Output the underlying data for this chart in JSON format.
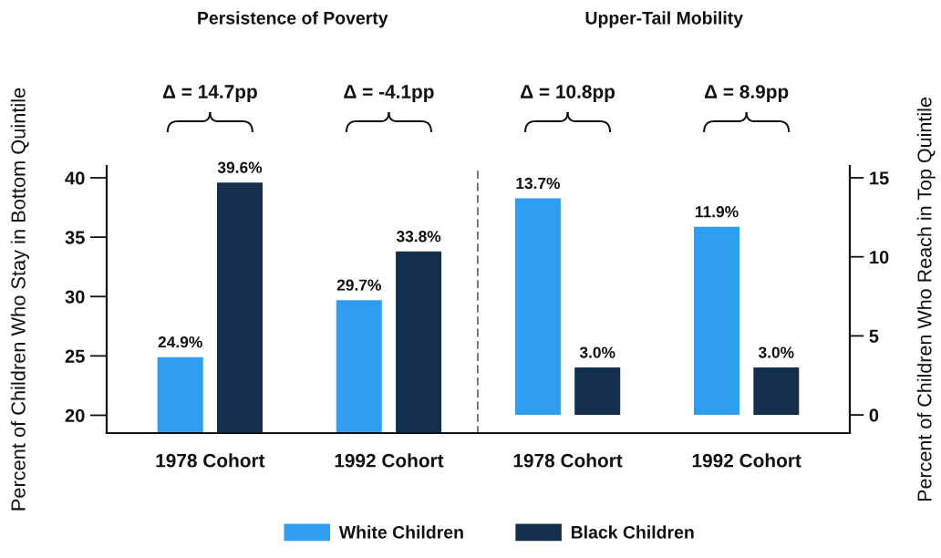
{
  "chart_data": [
    {
      "type": "bar",
      "title": "Persistence of Poverty",
      "ylabel": "Percent of Children Who Stay in Bottom Quintile",
      "categories": [
        "1978 Cohort",
        "1992 Cohort"
      ],
      "series": [
        {
          "name": "White Children",
          "color": "#2f9df1",
          "values": [
            24.9,
            29.7
          ],
          "value_labels": [
            "24.9%",
            "29.7%"
          ]
        },
        {
          "name": "Black Children",
          "color": "#132f4b",
          "values": [
            39.6,
            33.8
          ],
          "value_labels": [
            "39.6%",
            "33.8%"
          ]
        }
      ],
      "ylim": [
        18.5,
        41
      ],
      "yticks": [
        20,
        25,
        30,
        35,
        40
      ],
      "annotations": [
        "Δ = 14.7pp",
        "Δ = -4.1pp"
      ],
      "legend": "bottom"
    },
    {
      "type": "bar",
      "title": "Upper-Tail Mobility",
      "y2label": "Percent of Children Who Reach in Top Quintile",
      "categories": [
        "1978 Cohort",
        "1992 Cohort"
      ],
      "series": [
        {
          "color": "#2f9df1",
          "axis": "y2",
          "values": [
            13.7,
            11.9
          ],
          "value_labels": [
            "13.7%",
            "11.9%"
          ]
        },
        {
          "color": "#132f4b",
          "axis": "y2",
          "values": [
            3.0,
            3.0
          ],
          "value_labels": [
            "3.0%",
            "3.0%"
          ]
        }
      ],
      "y2lim": [
        -1.15,
        15.75
      ],
      "y2ticks": [
        0,
        5,
        10,
        15
      ],
      "annotations": [
        "Δ = 10.8pp",
        "Δ = 8.9pp"
      ]
    }
  ]
}
